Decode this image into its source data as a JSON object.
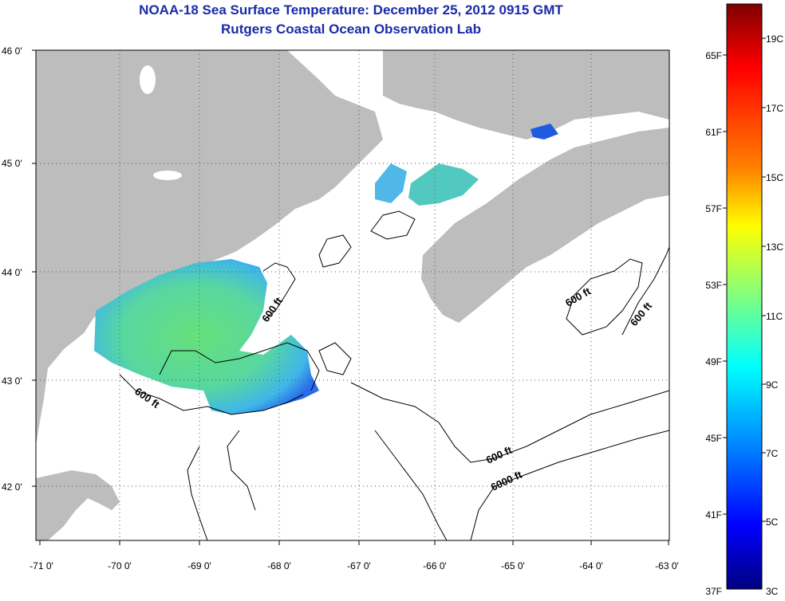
{
  "header": {
    "title": "NOAA-18 Sea Surface Temperature:  December 25, 2012 0915 GMT",
    "subtitle": "Rutgers Coastal Ocean Observation Lab"
  },
  "map": {
    "lat_labels": [
      "46 0'",
      "45 0'",
      "44 0'",
      "43 0'",
      "42 0'"
    ],
    "lon_labels": [
      "-71 0'",
      "-70 0'",
      "-69 0'",
      "-68 0'",
      "-67 0'",
      "-66 0'",
      "-65 0'",
      "-64 0'",
      "-63 0'"
    ],
    "contour_labels": [
      "600 ft",
      "600 ft",
      "600 ft",
      "600 ft",
      "600 ft",
      "6000 ft"
    ],
    "colors": {
      "land": "#bdbdbd",
      "water": "#ffffff",
      "grid": "#555555"
    }
  },
  "colorbar": {
    "fahrenheit_labels": [
      "65F",
      "61F",
      "57F",
      "53F",
      "49F",
      "45F",
      "41F",
      "37F"
    ],
    "celsius_labels": [
      "19C",
      "17C",
      "15C",
      "13C",
      "11C",
      "9C",
      "7C",
      "5C",
      "3C"
    ],
    "colors": [
      "#800000",
      "#ff0000",
      "#ff8000",
      "#ffff00",
      "#80ff80",
      "#00ffff",
      "#0080ff",
      "#0000ff",
      "#000080"
    ]
  }
}
